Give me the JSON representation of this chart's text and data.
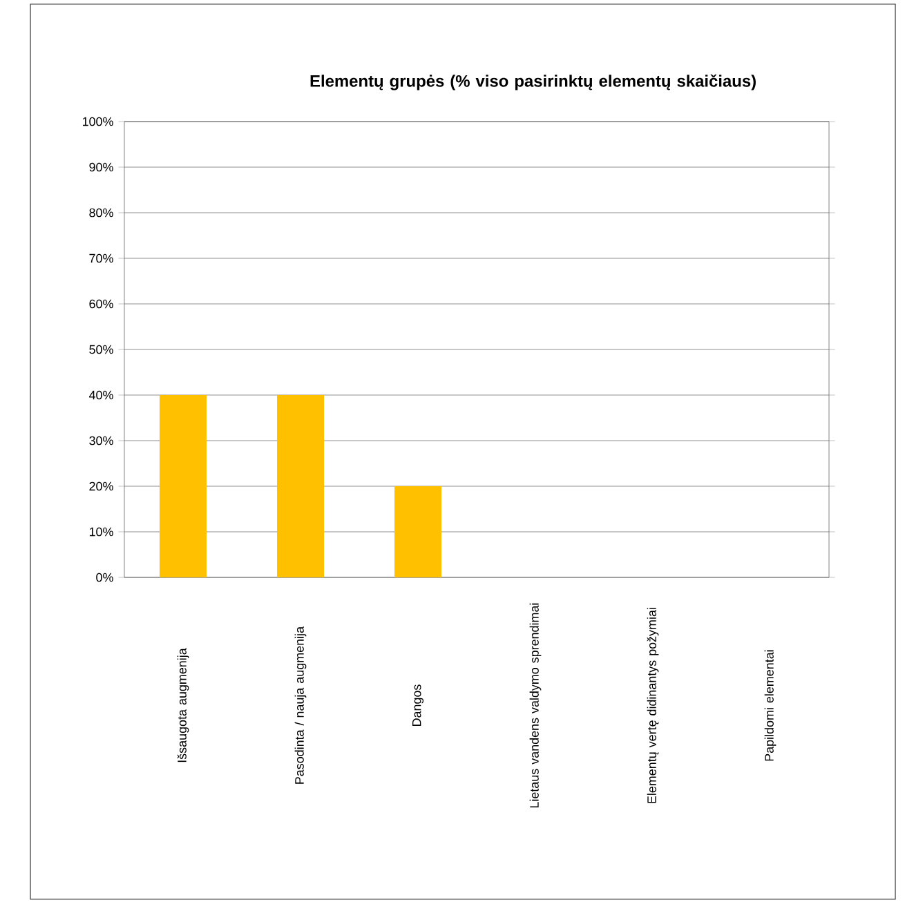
{
  "chart_data": {
    "type": "bar",
    "title": "Elementų grupės (% viso pasirinktų elementų skaičiaus)",
    "categories": [
      "Išsaugota augmenija",
      "Pasodinta / nauja augmenija",
      "Dangos",
      "Lietaus vandens valdymo sprendimai",
      "Elementų vertę didinantys požymiai",
      "Papildomi elementai"
    ],
    "values": [
      40,
      40,
      20,
      0,
      0,
      0
    ],
    "color": "#ffc000",
    "ylim": [
      0,
      100
    ],
    "yticks": [
      {
        "value": 0,
        "label": "0%"
      },
      {
        "value": 10,
        "label": "10%"
      },
      {
        "value": 20,
        "label": "20%"
      },
      {
        "value": 30,
        "label": "30%"
      },
      {
        "value": 40,
        "label": "40%"
      },
      {
        "value": 50,
        "label": "50%"
      },
      {
        "value": 60,
        "label": "60%"
      },
      {
        "value": 70,
        "label": "70%"
      },
      {
        "value": 80,
        "label": "80%"
      },
      {
        "value": 90,
        "label": "90%"
      },
      {
        "value": 100,
        "label": "100%"
      }
    ],
    "grid": "y"
  }
}
